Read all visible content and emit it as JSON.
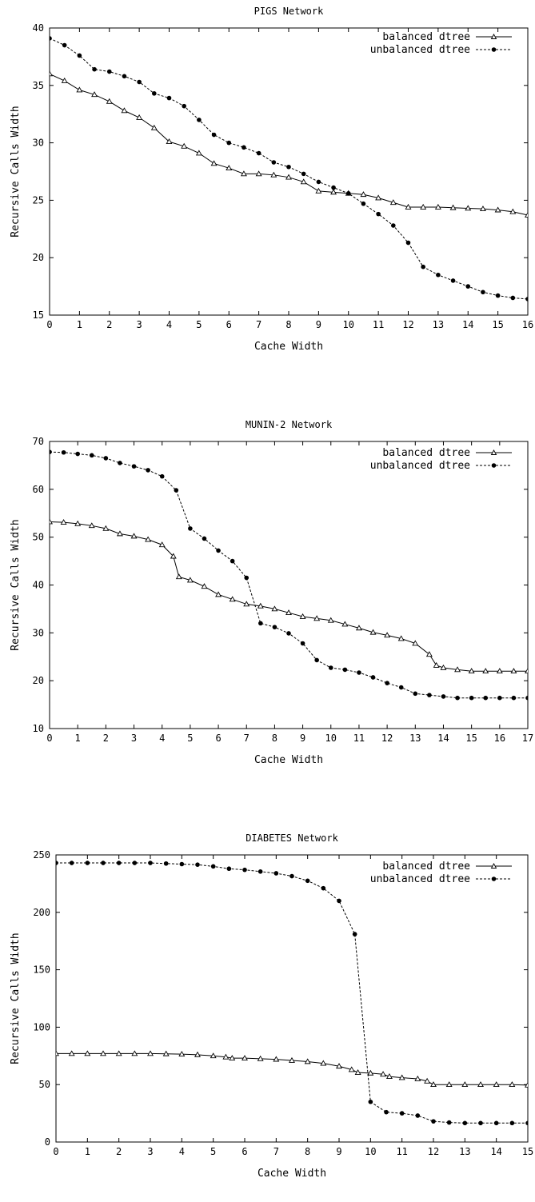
{
  "chart_data": [
    {
      "type": "line",
      "title": "PIGS Network",
      "xlabel": "Cache Width",
      "ylabel": "Recursive Calls Width",
      "xlim": [
        0,
        16
      ],
      "ylim": [
        15,
        40
      ],
      "xticks": [
        0,
        1,
        2,
        3,
        4,
        5,
        6,
        7,
        8,
        9,
        10,
        11,
        12,
        13,
        14,
        15,
        16
      ],
      "yticks": [
        15,
        20,
        25,
        30,
        35,
        40
      ],
      "grid": false,
      "legend_position": "top-right",
      "series": [
        {
          "name": "balanced dtree",
          "marker": "triangle",
          "line": "solid",
          "x": [
            0,
            0.5,
            1,
            1.5,
            2,
            2.5,
            3,
            3.5,
            4,
            4.5,
            5,
            5.5,
            6,
            6.5,
            7,
            7.5,
            8,
            8.5,
            9,
            9.5,
            10,
            10.5,
            11,
            11.5,
            12,
            12.5,
            13,
            13.5,
            14,
            14.5,
            15,
            15.5,
            16
          ],
          "y": [
            36.0,
            35.4,
            34.6,
            34.2,
            33.6,
            32.8,
            32.2,
            31.3,
            30.1,
            29.7,
            29.1,
            28.2,
            27.8,
            27.3,
            27.3,
            27.2,
            27.0,
            26.6,
            25.8,
            25.7,
            25.6,
            25.5,
            25.2,
            24.8,
            24.4,
            24.4,
            24.4,
            24.35,
            24.3,
            24.25,
            24.15,
            24.0,
            23.7
          ]
        },
        {
          "name": "unbalanced dtree",
          "marker": "circle",
          "line": "dashed",
          "x": [
            0,
            0.5,
            1,
            1.5,
            2,
            2.5,
            3,
            3.5,
            4,
            4.5,
            5,
            5.5,
            6,
            6.5,
            7,
            7.5,
            8,
            8.5,
            9,
            9.5,
            10,
            10.5,
            11,
            11.5,
            12,
            12.5,
            13,
            13.5,
            14,
            14.5,
            15,
            15.5,
            16
          ],
          "y": [
            39.1,
            38.5,
            37.6,
            36.4,
            36.2,
            35.8,
            35.3,
            34.3,
            33.9,
            33.2,
            32.0,
            30.7,
            30.0,
            29.6,
            29.1,
            28.3,
            27.9,
            27.3,
            26.6,
            26.1,
            25.6,
            24.7,
            23.8,
            22.8,
            21.3,
            19.2,
            18.5,
            18.0,
            17.5,
            17.0,
            16.7,
            16.5,
            16.4
          ]
        }
      ]
    },
    {
      "type": "line",
      "title": "MUNIN-2 Network",
      "xlabel": "Cache Width",
      "ylabel": "Recursive Calls Width",
      "xlim": [
        0,
        17
      ],
      "ylim": [
        10,
        70
      ],
      "xticks": [
        0,
        1,
        2,
        3,
        4,
        5,
        6,
        7,
        8,
        9,
        10,
        11,
        12,
        13,
        14,
        15,
        16,
        17
      ],
      "yticks": [
        10,
        20,
        30,
        40,
        50,
        60,
        70
      ],
      "grid": false,
      "legend_position": "top-right",
      "series": [
        {
          "name": "balanced dtree",
          "marker": "triangle",
          "line": "solid",
          "x": [
            0,
            0.5,
            1,
            1.5,
            2,
            2.5,
            3,
            3.5,
            4,
            4.4,
            4.6,
            5,
            5.5,
            6,
            6.5,
            7,
            7.5,
            8,
            8.5,
            9,
            9.5,
            10,
            10.5,
            11,
            11.5,
            12,
            12.5,
            13,
            13.5,
            13.75,
            14,
            14.5,
            15,
            15.5,
            16,
            16.5,
            17
          ],
          "y": [
            53.2,
            53.1,
            52.8,
            52.4,
            51.8,
            50.7,
            50.2,
            49.5,
            48.4,
            46.0,
            41.7,
            41.0,
            39.7,
            38.0,
            37.0,
            36.0,
            35.6,
            35.0,
            34.2,
            33.4,
            33.0,
            32.6,
            31.8,
            31.0,
            30.1,
            29.5,
            28.8,
            27.8,
            25.5,
            23.2,
            22.7,
            22.3,
            22.0,
            22.0,
            22.0,
            22.0,
            22.0
          ]
        },
        {
          "name": "unbalanced dtree",
          "marker": "circle",
          "line": "dashed",
          "x": [
            0,
            0.5,
            1,
            1.5,
            2,
            2.5,
            3,
            3.5,
            4,
            4.5,
            5,
            5.5,
            6,
            6.5,
            7,
            7.5,
            8,
            8.5,
            9,
            9.5,
            10,
            10.5,
            11,
            11.5,
            12,
            12.5,
            13,
            13.5,
            14,
            14.5,
            15,
            15.5,
            16,
            16.5,
            17
          ],
          "y": [
            67.8,
            67.7,
            67.4,
            67.1,
            66.5,
            65.5,
            64.8,
            64.0,
            62.7,
            59.8,
            51.8,
            49.7,
            47.2,
            45.0,
            41.5,
            32.0,
            31.2,
            29.9,
            27.8,
            24.3,
            22.7,
            22.3,
            21.7,
            20.7,
            19.5,
            18.6,
            17.3,
            17.0,
            16.7,
            16.4,
            16.4,
            16.4,
            16.4,
            16.4,
            16.4
          ]
        }
      ]
    },
    {
      "type": "line",
      "title": "DIABETES Network",
      "xlabel": "Cache Width",
      "ylabel": "Recursive Calls Width",
      "xlim": [
        0,
        15
      ],
      "ylim": [
        0,
        250
      ],
      "xticks": [
        0,
        1,
        2,
        3,
        4,
        5,
        6,
        7,
        8,
        9,
        10,
        11,
        12,
        13,
        14,
        15
      ],
      "yticks": [
        0,
        50,
        100,
        150,
        200,
        250
      ],
      "grid": false,
      "legend_position": "top-right",
      "series": [
        {
          "name": "balanced dtree",
          "marker": "triangle",
          "line": "solid",
          "x": [
            0,
            0.5,
            1,
            1.5,
            2,
            2.5,
            3,
            3.5,
            4,
            4.5,
            5,
            5.4,
            5.6,
            6,
            6.5,
            7,
            7.5,
            8,
            8.5,
            9,
            9.4,
            9.6,
            10,
            10.4,
            10.6,
            11,
            11.5,
            11.8,
            12,
            12.5,
            13,
            13.5,
            14,
            14.5,
            15
          ],
          "y": [
            77,
            77,
            77,
            77,
            77,
            77,
            77,
            76.8,
            76.5,
            76,
            75,
            74,
            73,
            73,
            72.5,
            72,
            71,
            70,
            68.5,
            66,
            63,
            60.5,
            60,
            59,
            57,
            56,
            55,
            53,
            50,
            50,
            50,
            50,
            50,
            50,
            49.5
          ]
        },
        {
          "name": "unbalanced dtree",
          "marker": "circle",
          "line": "dashed",
          "x": [
            0,
            0.5,
            1,
            1.5,
            2,
            2.5,
            3,
            3.5,
            4,
            4.5,
            5,
            5.5,
            6,
            6.5,
            7,
            7.5,
            8,
            8.5,
            9,
            9.5,
            10,
            10.5,
            11,
            11.5,
            12,
            12.5,
            13,
            13.5,
            14,
            14.5,
            15
          ],
          "y": [
            243,
            243,
            243,
            243,
            243,
            243,
            243,
            242.5,
            242,
            241.5,
            240,
            238,
            237,
            235.5,
            234,
            231.5,
            227.5,
            221,
            210,
            181,
            35,
            26,
            25,
            23,
            18,
            17,
            16.5,
            16.5,
            16.5,
            16.5,
            16.5
          ]
        }
      ]
    }
  ]
}
